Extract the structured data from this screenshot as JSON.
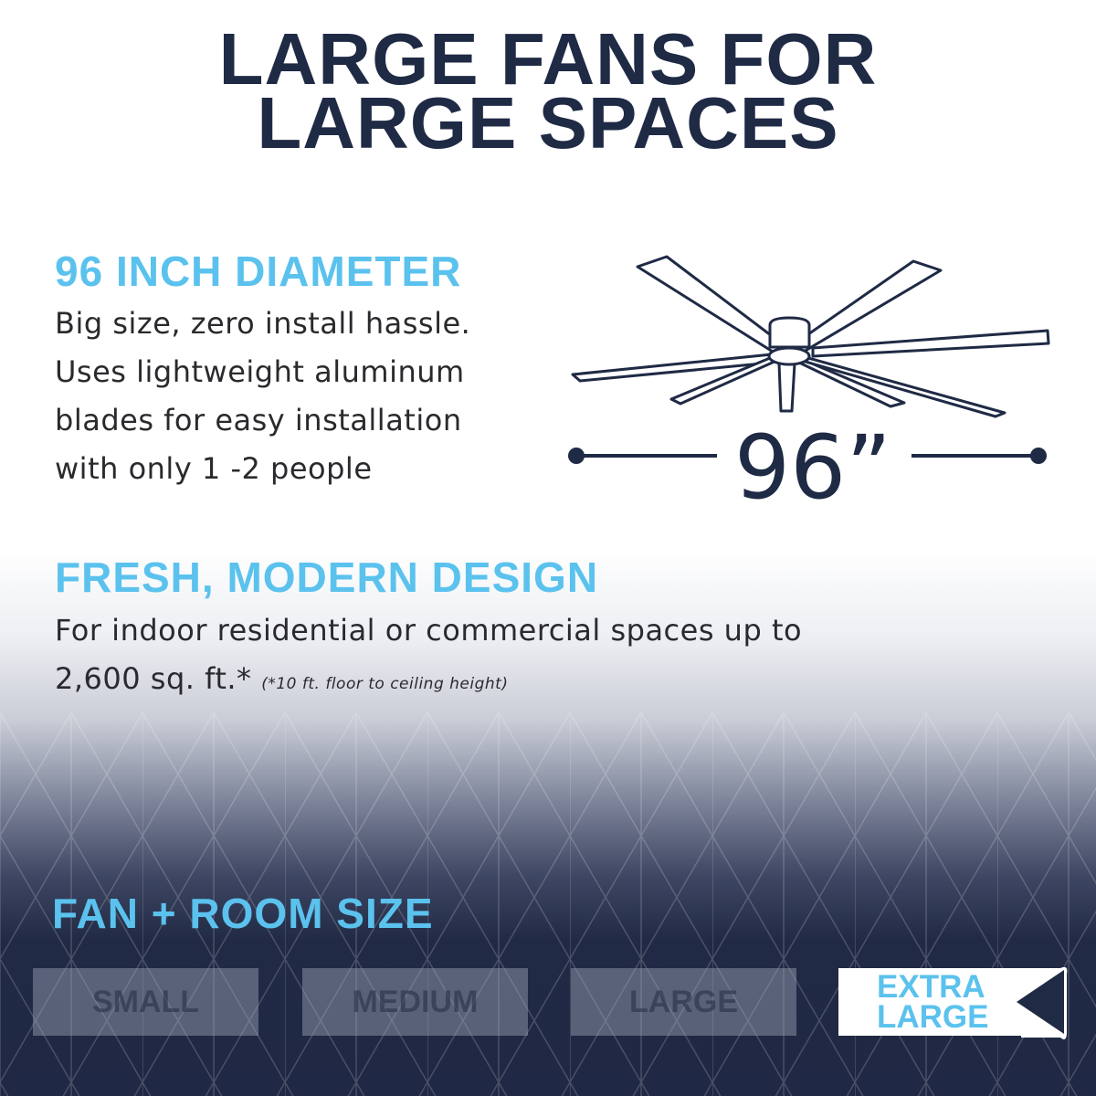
{
  "title": {
    "line1": "LARGE FANS FOR",
    "line2": "LARGE SPACES"
  },
  "section1": {
    "heading": "96 INCH DIAMETER",
    "lines": [
      "Big size, zero install hassle.",
      "Uses lightweight aluminum",
      "blades for easy installation",
      "with only 1 -2 people"
    ]
  },
  "diagram": {
    "dimension_label": "96”",
    "icon": "ceiling-fan-icon"
  },
  "section2": {
    "heading": "FRESH, MODERN DESIGN",
    "line1": "For indoor residential or commercial spaces up to",
    "line2": "2,600 sq. ft.*",
    "footnote": "(*10 ft. floor to ceiling height)"
  },
  "size_selector": {
    "heading": "FAN + ROOM SIZE",
    "options": [
      "SMALL",
      "MEDIUM",
      "LARGE"
    ],
    "selected": {
      "line1": "EXTRA",
      "line2": "LARGE"
    }
  },
  "colors": {
    "navy": "#1f2a45",
    "accent": "#5bc2ee"
  }
}
